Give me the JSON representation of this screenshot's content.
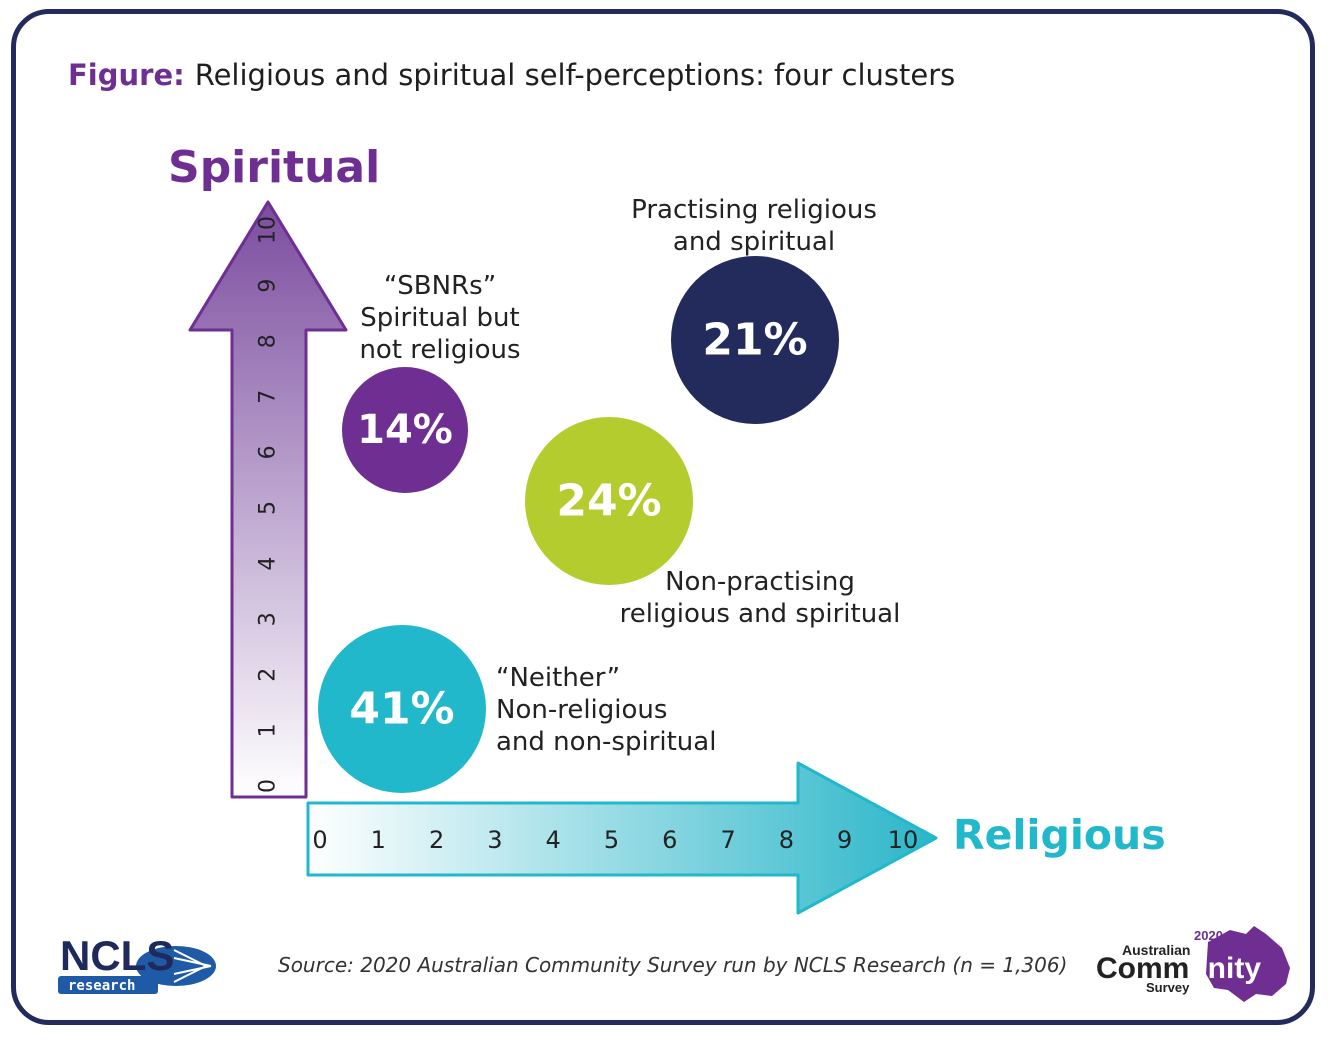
{
  "figure_label": "Figure:",
  "title": "Religious and spiritual self-perceptions: four clusters",
  "source": "Source: 2020 Australian Community Survey run by NCLS Research (n = 1,306)",
  "colors": {
    "frame": "#232a5c",
    "purple": "#6e2e92",
    "teal": "#22b8cc",
    "navy": "#232a5c",
    "lime": "#b5cc2e"
  },
  "chart_data": {
    "type": "scatter",
    "title": "Religious and spiritual self-perceptions: four clusters",
    "xlabel": "Religious",
    "ylabel": "Spiritual",
    "xlim": [
      0,
      10
    ],
    "ylim": [
      0,
      10
    ],
    "x_ticks": [
      "0",
      "1",
      "2",
      "3",
      "4",
      "5",
      "6",
      "7",
      "8",
      "9",
      "10"
    ],
    "y_ticks": [
      "0",
      "1",
      "2",
      "3",
      "4",
      "5",
      "6",
      "7",
      "8",
      "9",
      "10"
    ],
    "clusters": [
      {
        "value": "14%",
        "color": "#6e2e92",
        "label_lines": [
          "“SBNRs”",
          "Spiritual but",
          "not religious"
        ]
      },
      {
        "value": "21%",
        "color": "#232a5c",
        "label_lines": [
          "Practising religious",
          "and spiritual"
        ]
      },
      {
        "value": "24%",
        "color": "#b5cc2e",
        "label_lines": [
          "Non-practising",
          "religious and spiritual"
        ]
      },
      {
        "value": "41%",
        "color": "#22b8cc",
        "label_lines": [
          "“Neither”",
          "Non-religious",
          "and non-spiritual"
        ]
      }
    ]
  },
  "logos": {
    "ncls": {
      "word": "NCLS",
      "sub": "research"
    },
    "acs": {
      "year": "2020",
      "line1": "Australian",
      "line2a": "Comm",
      "line2b": "unity",
      "line3": "Survey"
    }
  }
}
